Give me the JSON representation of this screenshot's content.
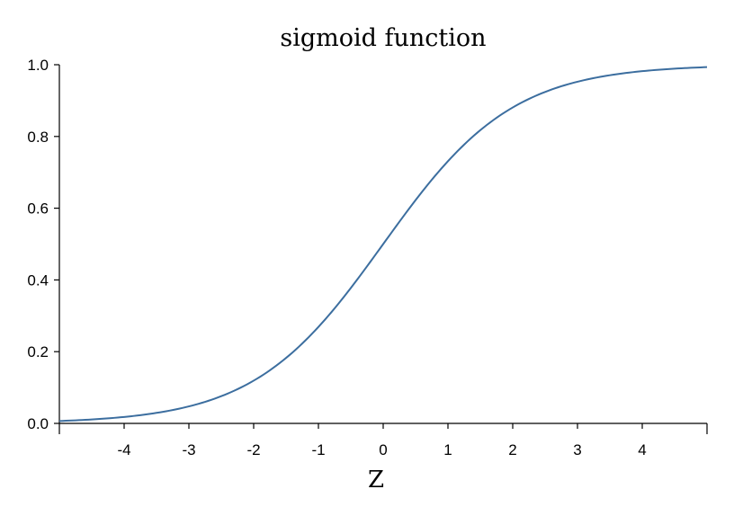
{
  "chart_data": {
    "type": "line",
    "title": "sigmoid function",
    "xlabel": "Z",
    "ylabel": "",
    "xlim": [
      -5,
      5
    ],
    "ylim": [
      0,
      1
    ],
    "x_ticks": [
      -4,
      -3,
      -2,
      -1,
      0,
      1,
      2,
      3,
      4
    ],
    "x_tick_labels": [
      "-4",
      "-3",
      "-2",
      "-1",
      "0",
      "1",
      "2",
      "3",
      "4"
    ],
    "y_ticks": [
      0,
      0.2,
      0.4,
      0.6,
      0.8,
      1.0
    ],
    "y_tick_labels": [
      "0.0",
      "0.2",
      "0.4",
      "0.6",
      "0.8",
      "1.0"
    ],
    "grid": false,
    "series": [
      {
        "color": "#3c6e9f",
        "x": [
          -5,
          -4.5,
          -4,
          -3.5,
          -3,
          -2.5,
          -2,
          -1.5,
          -1,
          -0.5,
          0,
          0.5,
          1,
          1.5,
          2,
          2.5,
          3,
          3.5,
          4,
          4.5,
          5
        ],
        "y": [
          0.0067,
          0.011,
          0.018,
          0.0293,
          0.0474,
          0.0759,
          0.1192,
          0.1824,
          0.2689,
          0.3775,
          0.5,
          0.6225,
          0.7311,
          0.8176,
          0.8808,
          0.9241,
          0.9526,
          0.9707,
          0.982,
          0.989,
          0.9933
        ]
      }
    ]
  }
}
